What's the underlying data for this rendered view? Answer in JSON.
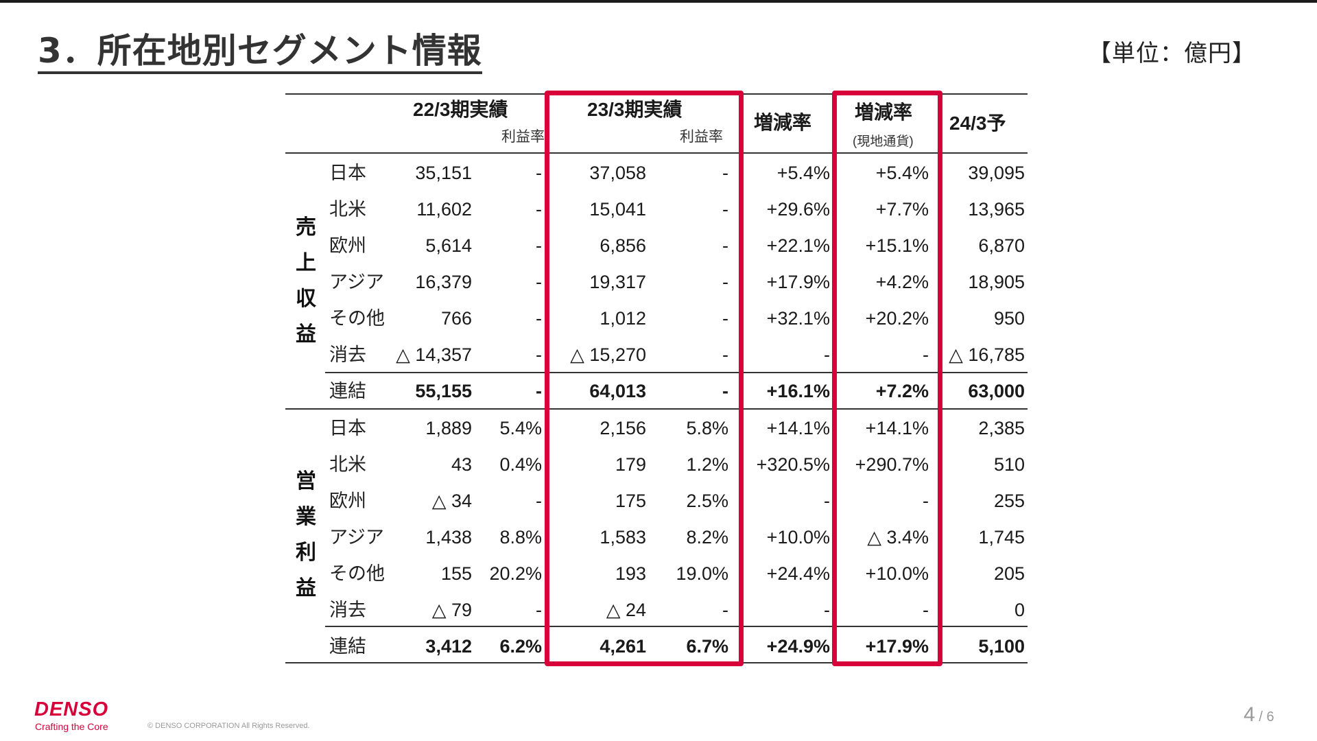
{
  "slide": {
    "title": "3．所在地別セグメント情報",
    "unit_label": "【単位：億円】",
    "page_current": "4",
    "page_separator": " / ",
    "page_total": "6"
  },
  "footer": {
    "logo": "DENSO",
    "tagline": "Crafting the Core",
    "copyright": "© DENSO CORPORATION All Rights Reserved."
  },
  "colors": {
    "highlight_box": "#D7003A",
    "brand": "#D7003A"
  },
  "table": {
    "headers": {
      "fy22_actual": "22/3期実績",
      "fy22_margin": "利益率",
      "fy23_actual": "23/3期実績",
      "fy23_margin": "利益率",
      "change_rate": "増減率",
      "change_rate_local": "増減率",
      "change_rate_local_sub": "(現地通貨)",
      "fy24_forecast": "24/3予"
    },
    "sections": [
      {
        "label": "売上収益",
        "label_chars": [
          "売",
          "上",
          "収",
          "益"
        ],
        "rows": [
          {
            "region": "日本",
            "fy22": "35,151",
            "fy22_margin": "-",
            "fy23": "37,058",
            "fy23_margin": "-",
            "change": "+5.4%",
            "change_local": "+5.4%",
            "fy24": "39,095"
          },
          {
            "region": "北米",
            "fy22": "11,602",
            "fy22_margin": "-",
            "fy23": "15,041",
            "fy23_margin": "-",
            "change": "+29.6%",
            "change_local": "+7.7%",
            "fy24": "13,965"
          },
          {
            "region": "欧州",
            "fy22": "5,614",
            "fy22_margin": "-",
            "fy23": "6,856",
            "fy23_margin": "-",
            "change": "+22.1%",
            "change_local": "+15.1%",
            "fy24": "6,870"
          },
          {
            "region": "アジア",
            "fy22": "16,379",
            "fy22_margin": "-",
            "fy23": "19,317",
            "fy23_margin": "-",
            "change": "+17.9%",
            "change_local": "+4.2%",
            "fy24": "18,905"
          },
          {
            "region": "その他",
            "fy22": "766",
            "fy22_margin": "-",
            "fy23": "1,012",
            "fy23_margin": "-",
            "change": "+32.1%",
            "change_local": "+20.2%",
            "fy24": "950"
          },
          {
            "region": "消去",
            "fy22": "△ 14,357",
            "fy22_margin": "-",
            "fy23": "△ 15,270",
            "fy23_margin": "-",
            "change": "-",
            "change_local": "-",
            "fy24": "△ 16,785"
          }
        ],
        "total": {
          "region": "連結",
          "fy22": "55,155",
          "fy22_margin": "-",
          "fy23": "64,013",
          "fy23_margin": "-",
          "change": "+16.1%",
          "change_local": "+7.2%",
          "fy24": "63,000"
        }
      },
      {
        "label": "営業利益",
        "label_chars": [
          "営",
          "業",
          "利",
          "益"
        ],
        "rows": [
          {
            "region": "日本",
            "fy22": "1,889",
            "fy22_margin": "5.4%",
            "fy23": "2,156",
            "fy23_margin": "5.8%",
            "change": "+14.1%",
            "change_local": "+14.1%",
            "fy24": "2,385"
          },
          {
            "region": "北米",
            "fy22": "43",
            "fy22_margin": "0.4%",
            "fy23": "179",
            "fy23_margin": "1.2%",
            "change": "+320.5%",
            "change_local": "+290.7%",
            "fy24": "510"
          },
          {
            "region": "欧州",
            "fy22": "△ 34",
            "fy22_margin": "-",
            "fy23": "175",
            "fy23_margin": "2.5%",
            "change": "-",
            "change_local": "-",
            "fy24": "255"
          },
          {
            "region": "アジア",
            "fy22": "1,438",
            "fy22_margin": "8.8%",
            "fy23": "1,583",
            "fy23_margin": "8.2%",
            "change": "+10.0%",
            "change_local": "△ 3.4%",
            "fy24": "1,745"
          },
          {
            "region": "その他",
            "fy22": "155",
            "fy22_margin": "20.2%",
            "fy23": "193",
            "fy23_margin": "19.0%",
            "change": "+24.4%",
            "change_local": "+10.0%",
            "fy24": "205"
          },
          {
            "region": "消去",
            "fy22": "△ 79",
            "fy22_margin": "-",
            "fy23": "△ 24",
            "fy23_margin": "-",
            "change": "-",
            "change_local": "-",
            "fy24": "0"
          }
        ],
        "total": {
          "region": "連結",
          "fy22": "3,412",
          "fy22_margin": "6.2%",
          "fy23": "4,261",
          "fy23_margin": "6.7%",
          "change": "+24.9%",
          "change_local": "+17.9%",
          "fy24": "5,100"
        }
      }
    ]
  }
}
